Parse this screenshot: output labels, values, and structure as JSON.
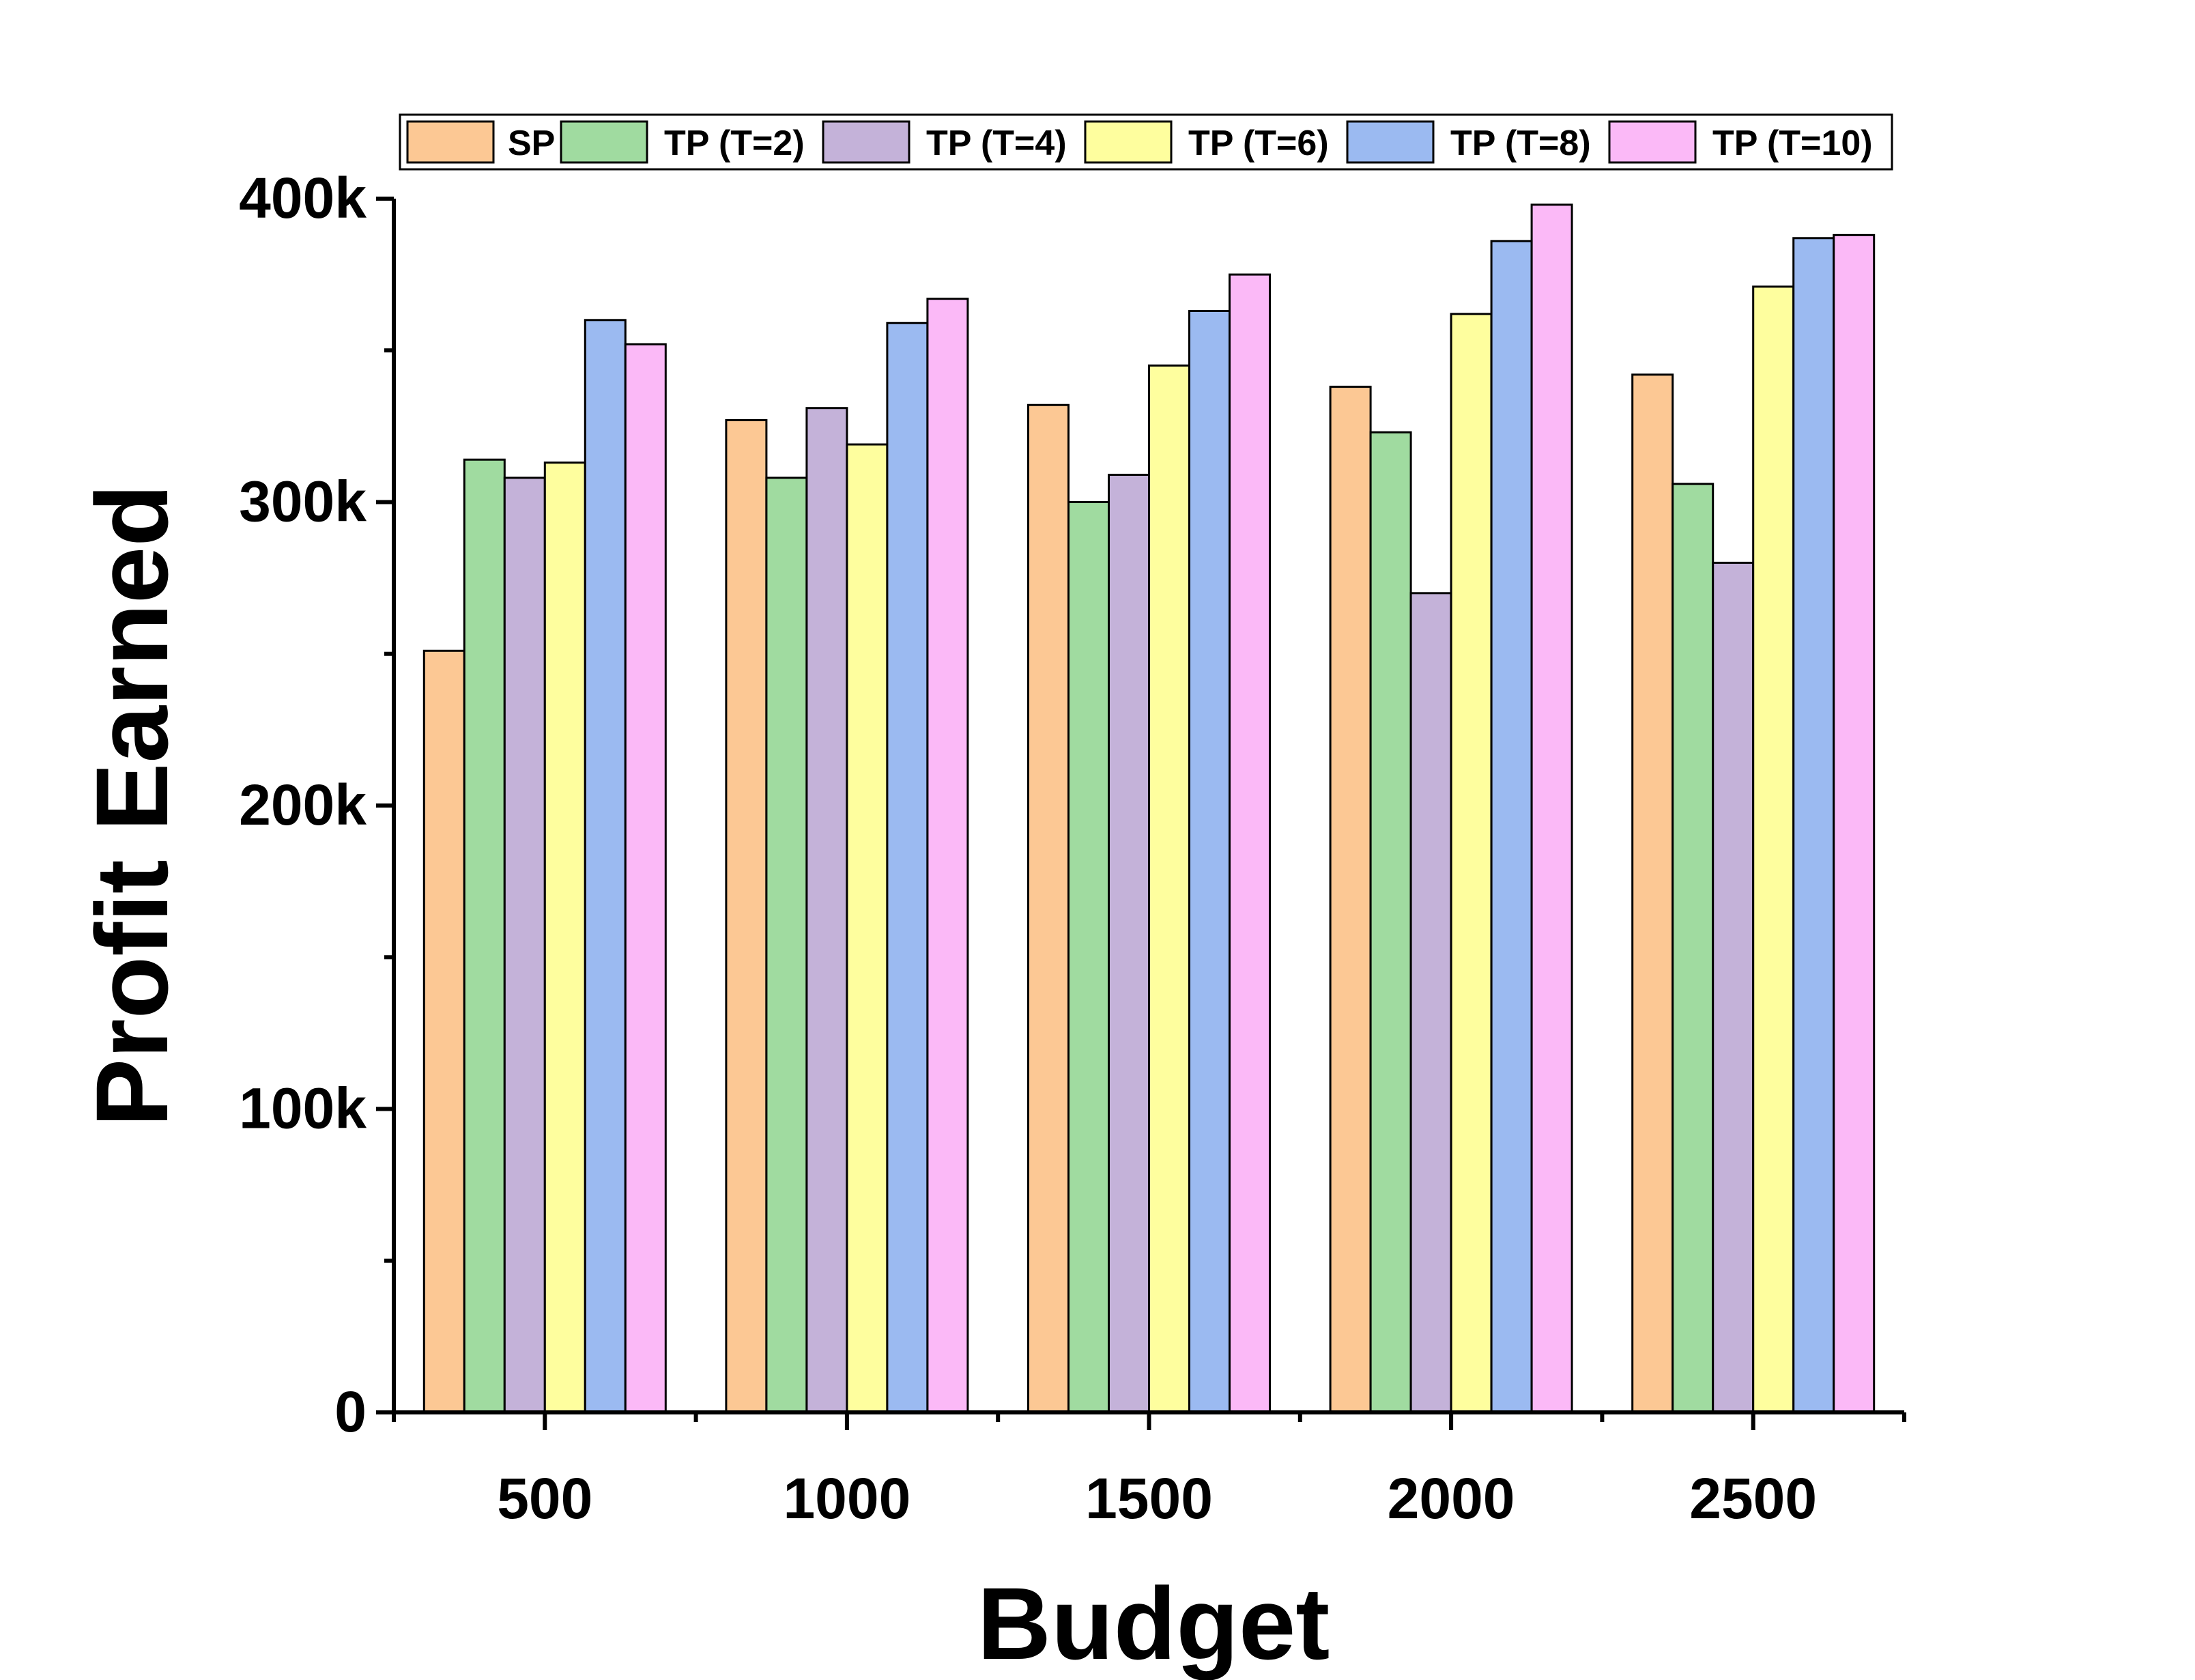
{
  "chart_data": {
    "type": "bar",
    "xlabel": "Budget",
    "ylabel": "Profit Earned",
    "categories": [
      "500",
      "1000",
      "1500",
      "2000",
      "2500"
    ],
    "ylim": [
      0,
      400000
    ],
    "y_ticks": [
      {
        "value": 0,
        "label": "0"
      },
      {
        "value": 100000,
        "label": "100k"
      },
      {
        "value": 200000,
        "label": "200k"
      },
      {
        "value": 300000,
        "label": "300k"
      },
      {
        "value": 400000,
        "label": "400k"
      }
    ],
    "legend_position": "top",
    "grid": false,
    "series": [
      {
        "name": "SP",
        "color": "#FCC894",
        "values": [
          251000,
          327000,
          332000,
          338000,
          342000
        ]
      },
      {
        "name": "TP (T=2)",
        "color": "#A0DBA0",
        "values": [
          314000,
          308000,
          300000,
          323000,
          306000
        ]
      },
      {
        "name": "TP (T=4)",
        "color": "#C4B2D9",
        "values": [
          308000,
          331000,
          309000,
          270000,
          280000
        ]
      },
      {
        "name": "TP (T=6)",
        "color": "#FEFE9E",
        "values": [
          313000,
          319000,
          345000,
          362000,
          371000
        ]
      },
      {
        "name": "TP (T=8)",
        "color": "#9BBAF1",
        "values": [
          360000,
          359000,
          363000,
          386000,
          387000
        ]
      },
      {
        "name": "TP (T=10)",
        "color": "#FBB9F7",
        "values": [
          352000,
          367000,
          375000,
          398000,
          388000
        ]
      }
    ]
  }
}
